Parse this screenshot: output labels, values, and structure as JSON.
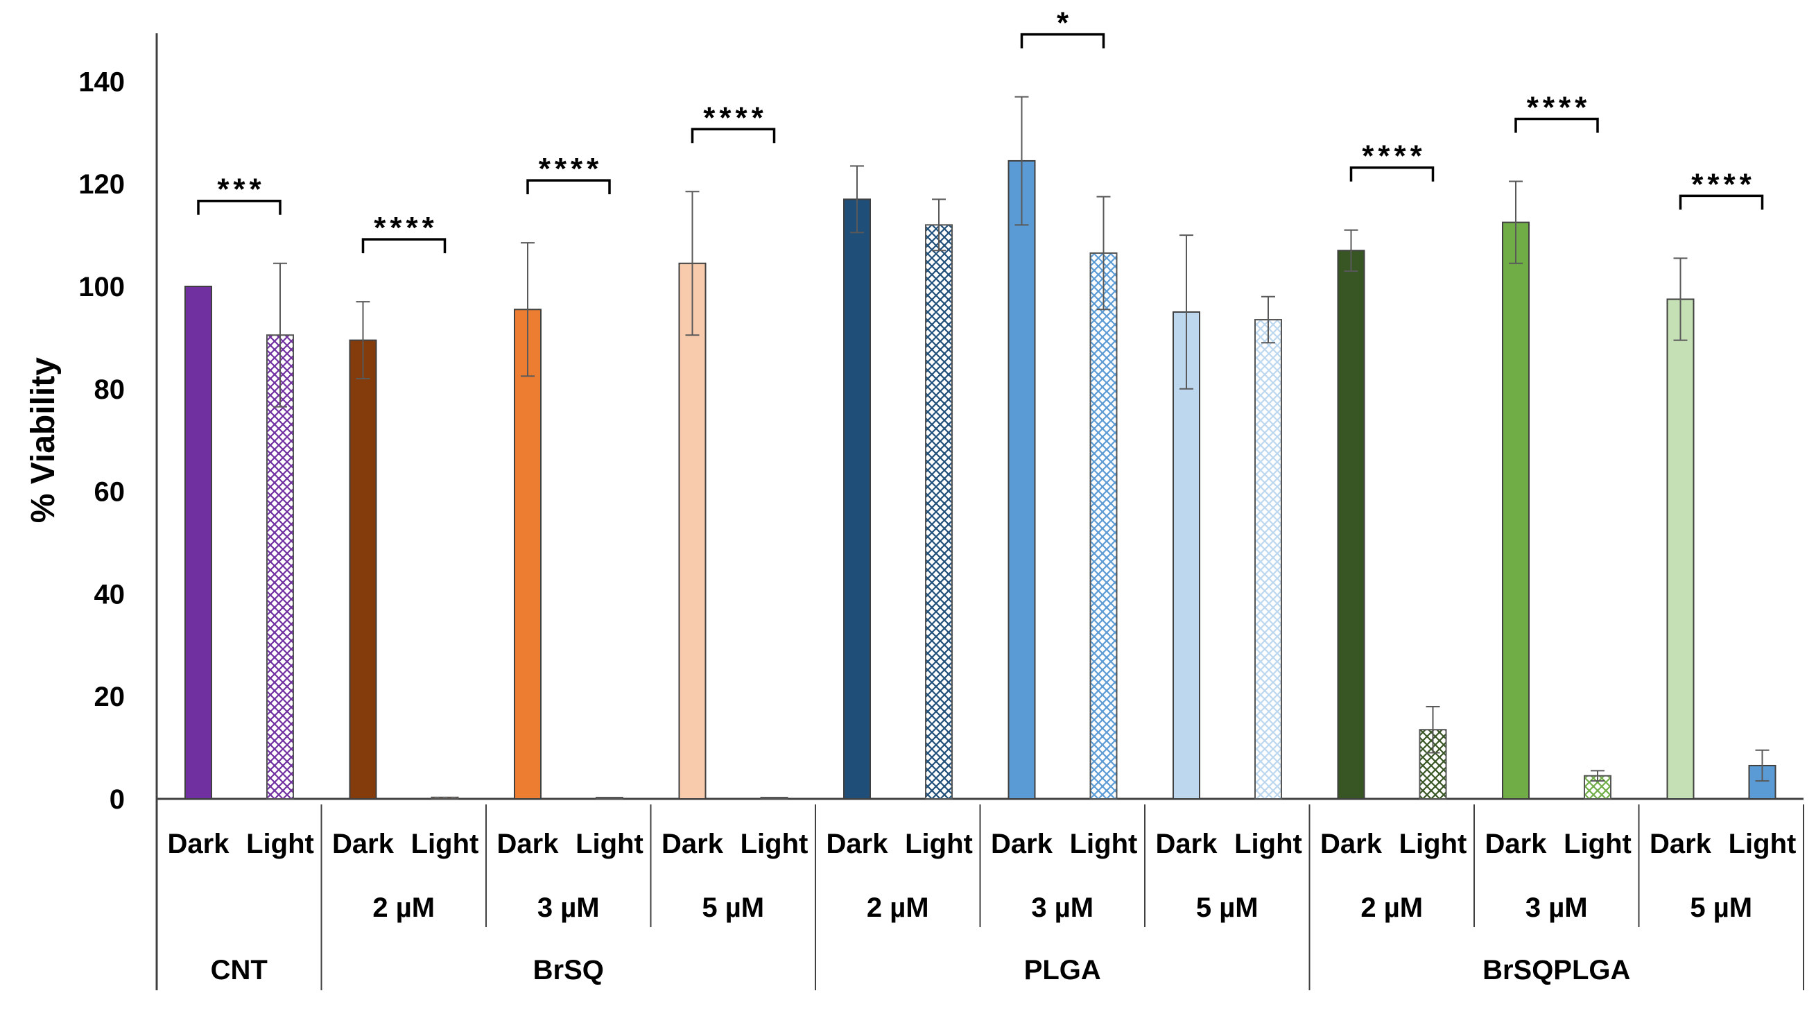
{
  "chart_data": {
    "type": "bar",
    "title": "",
    "xlabel": "",
    "ylabel": "% Viability",
    "ylim": [
      0,
      150
    ],
    "yticks": [
      0,
      20,
      40,
      60,
      80,
      100,
      120,
      140
    ],
    "grid": false,
    "legend": "none",
    "groups": [
      {
        "name": "CNT",
        "subgroups": [
          {
            "label": "",
            "bars": [
              {
                "condition": "Dark",
                "value": 100,
                "error": 0,
                "color": "#7030A0",
                "pattern": "solid"
              },
              {
                "condition": "Light",
                "value": 90.5,
                "error": 14.0,
                "color": "#7030A0",
                "pattern": "hatch"
              }
            ],
            "significance": "***"
          }
        ]
      },
      {
        "name": "BrSQ",
        "subgroups": [
          {
            "label": "2 µM",
            "bars": [
              {
                "condition": "Dark",
                "value": 89.5,
                "error": 7.5,
                "color": "#843C0C",
                "pattern": "solid"
              },
              {
                "condition": "Light",
                "value": 0.3,
                "error": 0,
                "color": "#843C0C",
                "pattern": "hatch"
              }
            ],
            "significance": "****"
          },
          {
            "label": "3 µM",
            "bars": [
              {
                "condition": "Dark",
                "value": 95.5,
                "error": 13.0,
                "color": "#ED7D31",
                "pattern": "solid"
              },
              {
                "condition": "Light",
                "value": 0.2,
                "error": 0,
                "color": "#ED7D31",
                "pattern": "hatch"
              }
            ],
            "significance": "****"
          },
          {
            "label": "5 µM",
            "bars": [
              {
                "condition": "Dark",
                "value": 104.5,
                "error": 14.0,
                "color": "#F8CBAD",
                "pattern": "solid"
              },
              {
                "condition": "Light",
                "value": 0.2,
                "error": 0,
                "color": "#F8CBAD",
                "pattern": "hatch"
              }
            ],
            "significance": "****"
          }
        ]
      },
      {
        "name": "PLGA",
        "subgroups": [
          {
            "label": "2 µM",
            "bars": [
              {
                "condition": "Dark",
                "value": 117.0,
                "error": 6.5,
                "color": "#1F4E79",
                "pattern": "solid"
              },
              {
                "condition": "Light",
                "value": 112.0,
                "error": 5.0,
                "color": "#1F4E79",
                "pattern": "hatch"
              }
            ],
            "significance": ""
          },
          {
            "label": "3 µM",
            "bars": [
              {
                "condition": "Dark",
                "value": 124.5,
                "error": 12.5,
                "color": "#5B9BD5",
                "pattern": "solid"
              },
              {
                "condition": "Light",
                "value": 106.5,
                "error": 11.0,
                "color": "#5B9BD5",
                "pattern": "hatch"
              }
            ],
            "significance": "*"
          },
          {
            "label": "5 µM",
            "bars": [
              {
                "condition": "Dark",
                "value": 95.0,
                "error": 15.0,
                "color": "#BDD7EE",
                "pattern": "solid"
              },
              {
                "condition": "Light",
                "value": 93.5,
                "error": 4.5,
                "color": "#BDD7EE",
                "pattern": "hatch"
              }
            ],
            "significance": ""
          }
        ]
      },
      {
        "name": "BrSQPLGA",
        "subgroups": [
          {
            "label": "2 µM",
            "bars": [
              {
                "condition": "Dark",
                "value": 107.0,
                "error": 4.0,
                "color": "#375623",
                "pattern": "solid"
              },
              {
                "condition": "Light",
                "value": 13.5,
                "error": 4.5,
                "color": "#375623",
                "pattern": "hatch"
              }
            ],
            "significance": "****"
          },
          {
            "label": "3 µM",
            "bars": [
              {
                "condition": "Dark",
                "value": 112.5,
                "error": 8.0,
                "color": "#70AD47",
                "pattern": "solid"
              },
              {
                "condition": "Light",
                "value": 4.5,
                "error": 1.0,
                "color": "#70AD47",
                "pattern": "hatch"
              }
            ],
            "significance": "****"
          },
          {
            "label": "5 µM",
            "bars": [
              {
                "condition": "Dark",
                "value": 97.5,
                "error": 8.0,
                "color": "#C5E0B4",
                "pattern": "solid"
              },
              {
                "condition": "Light",
                "value": 6.5,
                "error": 3.0,
                "color": "#5B9BD5",
                "pattern": "solid"
              }
            ],
            "significance": "****"
          }
        ]
      }
    ]
  }
}
